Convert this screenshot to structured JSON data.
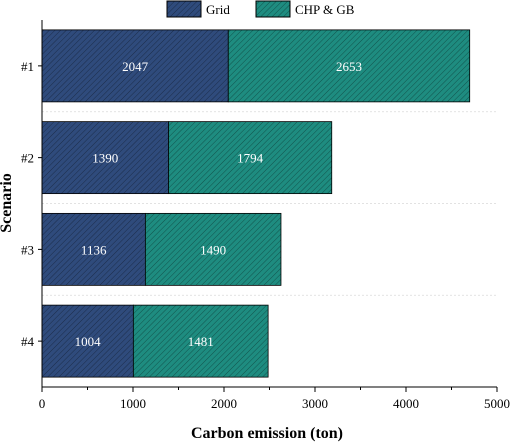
{
  "chart_data": {
    "type": "bar",
    "orientation": "horizontal",
    "stacked": true,
    "categories": [
      "#1",
      "#2",
      "#3",
      "#4"
    ],
    "series": [
      {
        "name": "Grid",
        "values": [
          2047,
          1390,
          1136,
          1004
        ],
        "color": "#2f4b7c"
      },
      {
        "name": "CHP & GB",
        "values": [
          2653,
          1794,
          1490,
          1481
        ],
        "color": "#1e8c80"
      }
    ],
    "xlabel": "Carbon emission (ton)",
    "ylabel": "Scenario",
    "xlim": [
      0,
      5000
    ],
    "xticks": [
      0,
      1000,
      2000,
      3000,
      4000,
      5000
    ],
    "legend_position": "top",
    "grid": false,
    "bar_pattern": "diagonal-hatch"
  }
}
